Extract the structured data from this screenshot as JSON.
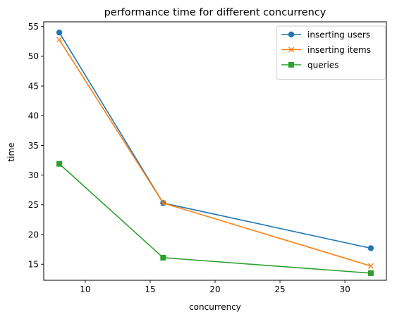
{
  "chart_data": {
    "type": "line",
    "title": "performance time for different concurrency",
    "xlabel": "concurrency",
    "ylabel": "time",
    "xlim": [
      6.8,
      33.2
    ],
    "ylim": [
      12.3,
      55.8
    ],
    "xticks": [
      10,
      15,
      20,
      25,
      30
    ],
    "yticks": [
      15,
      20,
      25,
      30,
      35,
      40,
      45,
      50,
      55
    ],
    "grid": false,
    "legend_position": "top-right",
    "x": [
      8,
      16,
      32
    ],
    "series": [
      {
        "name": "inserting users",
        "values": [
          54.0,
          25.3,
          17.7
        ],
        "color": "#1f77b4",
        "marker": "circle"
      },
      {
        "name": "inserting items",
        "values": [
          52.8,
          25.3,
          14.7
        ],
        "color": "#ff7f0e",
        "marker": "x"
      },
      {
        "name": "queries",
        "values": [
          31.9,
          16.1,
          13.5
        ],
        "color": "#2ca02c",
        "marker": "square"
      }
    ]
  }
}
